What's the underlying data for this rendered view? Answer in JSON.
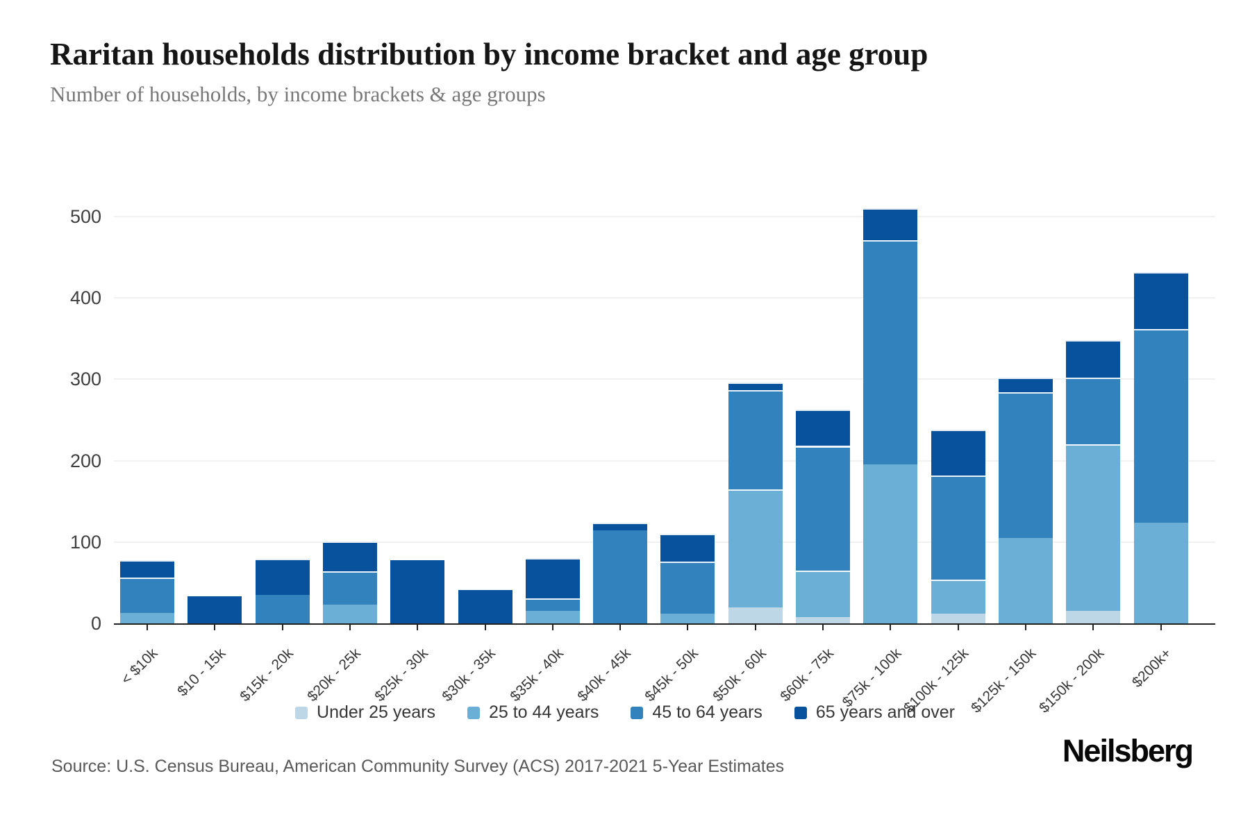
{
  "page": {
    "title": "Raritan households distribution by income bracket and age group",
    "subtitle": "Number of households, by income brackets & age groups",
    "source": "Source: U.S. Census Bureau, American Community Survey (ACS) 2017-2021 5-Year Estimates",
    "logo": "Neilsberg"
  },
  "chart_data": {
    "type": "bar",
    "stacked": true,
    "title": "Raritan households distribution by income bracket and age group",
    "subtitle": "Number of households, by income brackets & age groups",
    "xlabel": "",
    "ylabel": "Number of households",
    "ylim": [
      0,
      510
    ],
    "grid": "horizontal",
    "legend_position": "bottom",
    "y_ticks": [
      0,
      100,
      200,
      300,
      400,
      500
    ],
    "categories": [
      "< $10k",
      "$10 - 15k",
      "$15k - 20k",
      "$20k - 25k",
      "$25k - 30k",
      "$30k - 35k",
      "$35k - 40k",
      "$40k - 45k",
      "$45k - 50k",
      "$50k - 60k",
      "$60k - 75k",
      "$75k - 100k",
      "$100k - 125k",
      "$125k - 150k",
      "$150k - 200k",
      "$200k+"
    ],
    "series": [
      {
        "name": "Under 25 years",
        "color": "#bdd7e7",
        "values": [
          0,
          0,
          0,
          0,
          0,
          0,
          0,
          0,
          0,
          20,
          8,
          0,
          12,
          0,
          15,
          0
        ]
      },
      {
        "name": "25 to 44 years",
        "color": "#6baed6",
        "values": [
          13,
          0,
          0,
          23,
          0,
          0,
          15,
          0,
          12,
          145,
          57,
          195,
          42,
          105,
          205,
          124
        ]
      },
      {
        "name": "45 to 64 years",
        "color": "#3182bd",
        "values": [
          43,
          0,
          35,
          41,
          0,
          0,
          16,
          114,
          64,
          122,
          153,
          276,
          128,
          179,
          82,
          238
        ]
      },
      {
        "name": "65 years and over",
        "color": "#08519c",
        "values": [
          22,
          33,
          44,
          37,
          78,
          41,
          49,
          10,
          34,
          9,
          45,
          39,
          56,
          18,
          46,
          70
        ]
      }
    ],
    "totals": [
      78,
      33,
      79,
      101,
      78,
      41,
      80,
      124,
      110,
      296,
      263,
      510,
      238,
      302,
      348,
      432
    ]
  }
}
